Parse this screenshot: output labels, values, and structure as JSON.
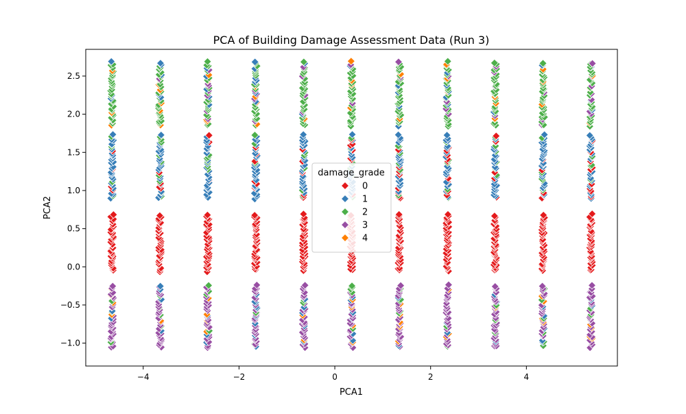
{
  "chart_data": {
    "type": "scatter",
    "title": "PCA of Building Damage Assessment Data (Run 3)",
    "xlabel": "PCA1",
    "ylabel": "PCA2",
    "xlim": [
      -5.2,
      5.9
    ],
    "ylim": [
      -1.3,
      2.85
    ],
    "xticks": [
      -4,
      -2,
      0,
      2,
      4
    ],
    "yticks": [
      -1.0,
      -0.5,
      0.0,
      0.5,
      1.0,
      1.5,
      2.0,
      2.5
    ],
    "grid": false,
    "marker": "diamond",
    "legend": {
      "title": "damage_grade",
      "placement": "center",
      "entries": [
        "0",
        "1",
        "2",
        "3",
        "4"
      ]
    },
    "colors": {
      "0": "#e41a1c",
      "1": "#377eb8",
      "2": "#4daf4a",
      "3": "#984ea3",
      "4": "#ff7f00"
    },
    "x_columns": [
      -4.65,
      -3.65,
      -2.65,
      -1.65,
      -0.65,
      0.35,
      1.35,
      2.35,
      3.35,
      4.35,
      5.35
    ],
    "clusters": [
      {
        "name": "top",
        "y_range": [
          1.85,
          2.68
        ],
        "dominant_grade": "2",
        "mix": [
          "2",
          "1",
          "3",
          "4"
        ]
      },
      {
        "name": "upper-middle",
        "y_range": [
          0.9,
          1.72
        ],
        "dominant_grade": "1",
        "mix": [
          "1",
          "0",
          "2"
        ]
      },
      {
        "name": "lower-middle",
        "y_range": [
          -0.05,
          0.68
        ],
        "dominant_grade": "0",
        "mix": [
          "0"
        ]
      },
      {
        "name": "bottom",
        "y_range": [
          -1.05,
          -0.25
        ],
        "dominant_grade": "3",
        "mix": [
          "3",
          "4",
          "2",
          "1"
        ]
      }
    ]
  }
}
